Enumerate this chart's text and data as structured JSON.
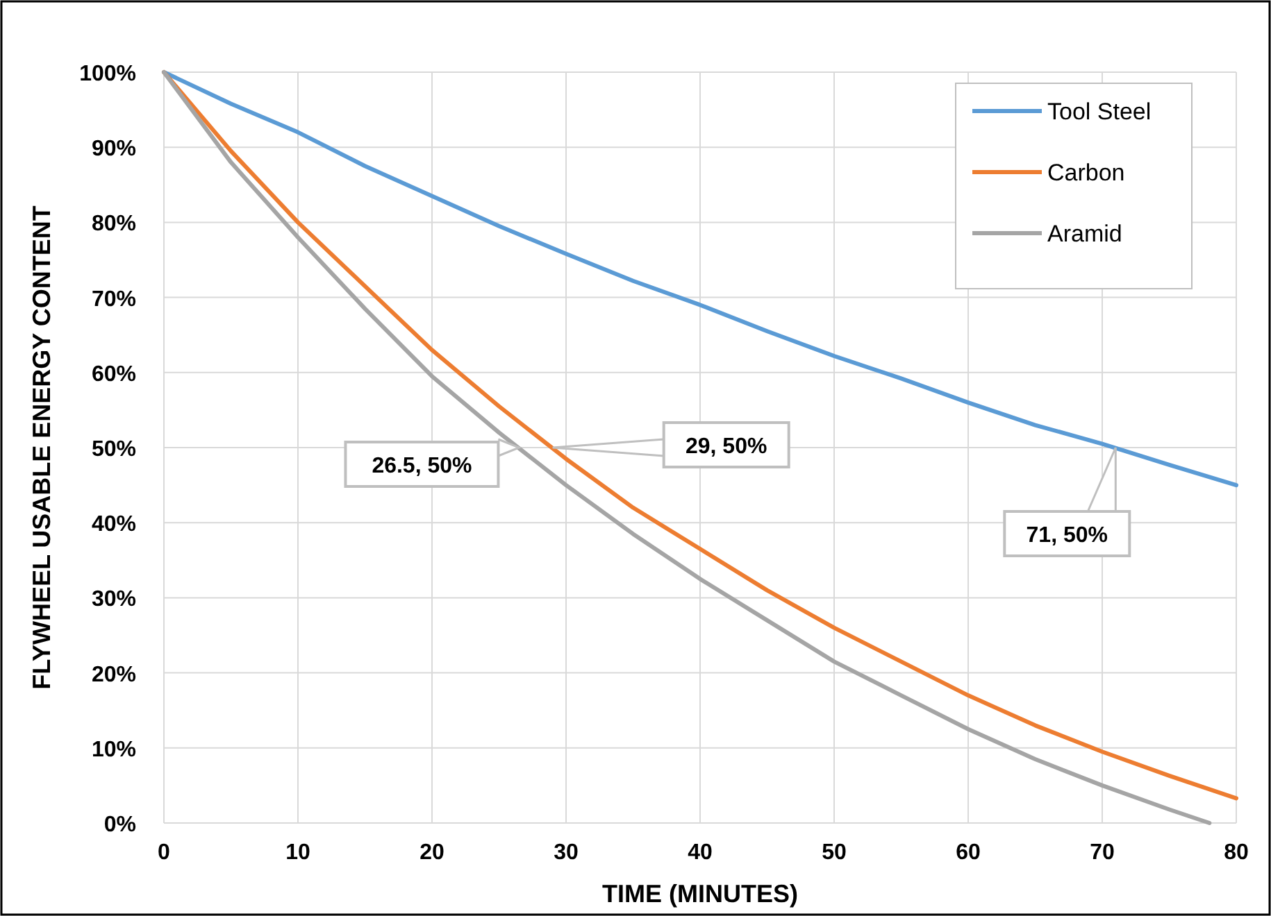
{
  "chart_data": {
    "type": "line",
    "xlabel": "TIME (MINUTES)",
    "ylabel": "FLYWHEEL USABLE ENERGY CONTENT",
    "xlim": [
      0,
      80
    ],
    "xticks": [
      0,
      10,
      20,
      30,
      40,
      50,
      60,
      70,
      80
    ],
    "ylim": [
      0,
      100
    ],
    "yticks": [
      {
        "value": 0,
        "label": "0%"
      },
      {
        "value": 10,
        "label": "10%"
      },
      {
        "value": 20,
        "label": "20%"
      },
      {
        "value": 30,
        "label": "30%"
      },
      {
        "value": 40,
        "label": "40%"
      },
      {
        "value": 50,
        "label": "50%"
      },
      {
        "value": 60,
        "label": "60%"
      },
      {
        "value": 70,
        "label": "70%"
      },
      {
        "value": 80,
        "label": "80%"
      },
      {
        "value": 90,
        "label": "90%"
      },
      {
        "value": 100,
        "label": "100%"
      }
    ],
    "grid": true,
    "legend": "top right",
    "marker": "none",
    "line_style": "solid",
    "series": [
      {
        "name": "Tool Steel",
        "color": "#5b9bd5",
        "x": [
          0,
          5,
          10,
          15,
          20,
          25,
          30,
          35,
          40,
          45,
          50,
          55,
          60,
          65,
          70,
          75,
          80
        ],
        "values": [
          100,
          95.8,
          92,
          87.5,
          83.5,
          79.5,
          75.8,
          72.2,
          69,
          65.5,
          62.2,
          59.2,
          56,
          53,
          50.5,
          47.7,
          45
        ]
      },
      {
        "name": "Carbon",
        "color": "#ed7d31",
        "x": [
          0,
          5,
          10,
          15,
          20,
          25,
          30,
          35,
          40,
          45,
          50,
          55,
          60,
          65,
          70,
          75,
          80
        ],
        "values": [
          100,
          89.5,
          80,
          71.5,
          63,
          55.5,
          48.5,
          42,
          36.5,
          31,
          26,
          21.5,
          17,
          13,
          9.5,
          6.3,
          3.3
        ]
      },
      {
        "name": "Aramid",
        "color": "#a5a5a5",
        "x": [
          0,
          5,
          10,
          15,
          20,
          25,
          30,
          35,
          40,
          45,
          50,
          55,
          60,
          65,
          70,
          75,
          78
        ],
        "values": [
          100,
          88,
          78,
          68.5,
          59.5,
          52,
          45,
          38.5,
          32.5,
          27,
          21.5,
          17,
          12.5,
          8.5,
          5,
          1.8,
          0
        ]
      }
    ],
    "annotations": [
      {
        "text": "26.5, 50%",
        "x": 26.5,
        "y": 50
      },
      {
        "text": "29, 50%",
        "x": 29,
        "y": 50
      },
      {
        "text": "71, 50%",
        "x": 71,
        "y": 50
      }
    ]
  }
}
